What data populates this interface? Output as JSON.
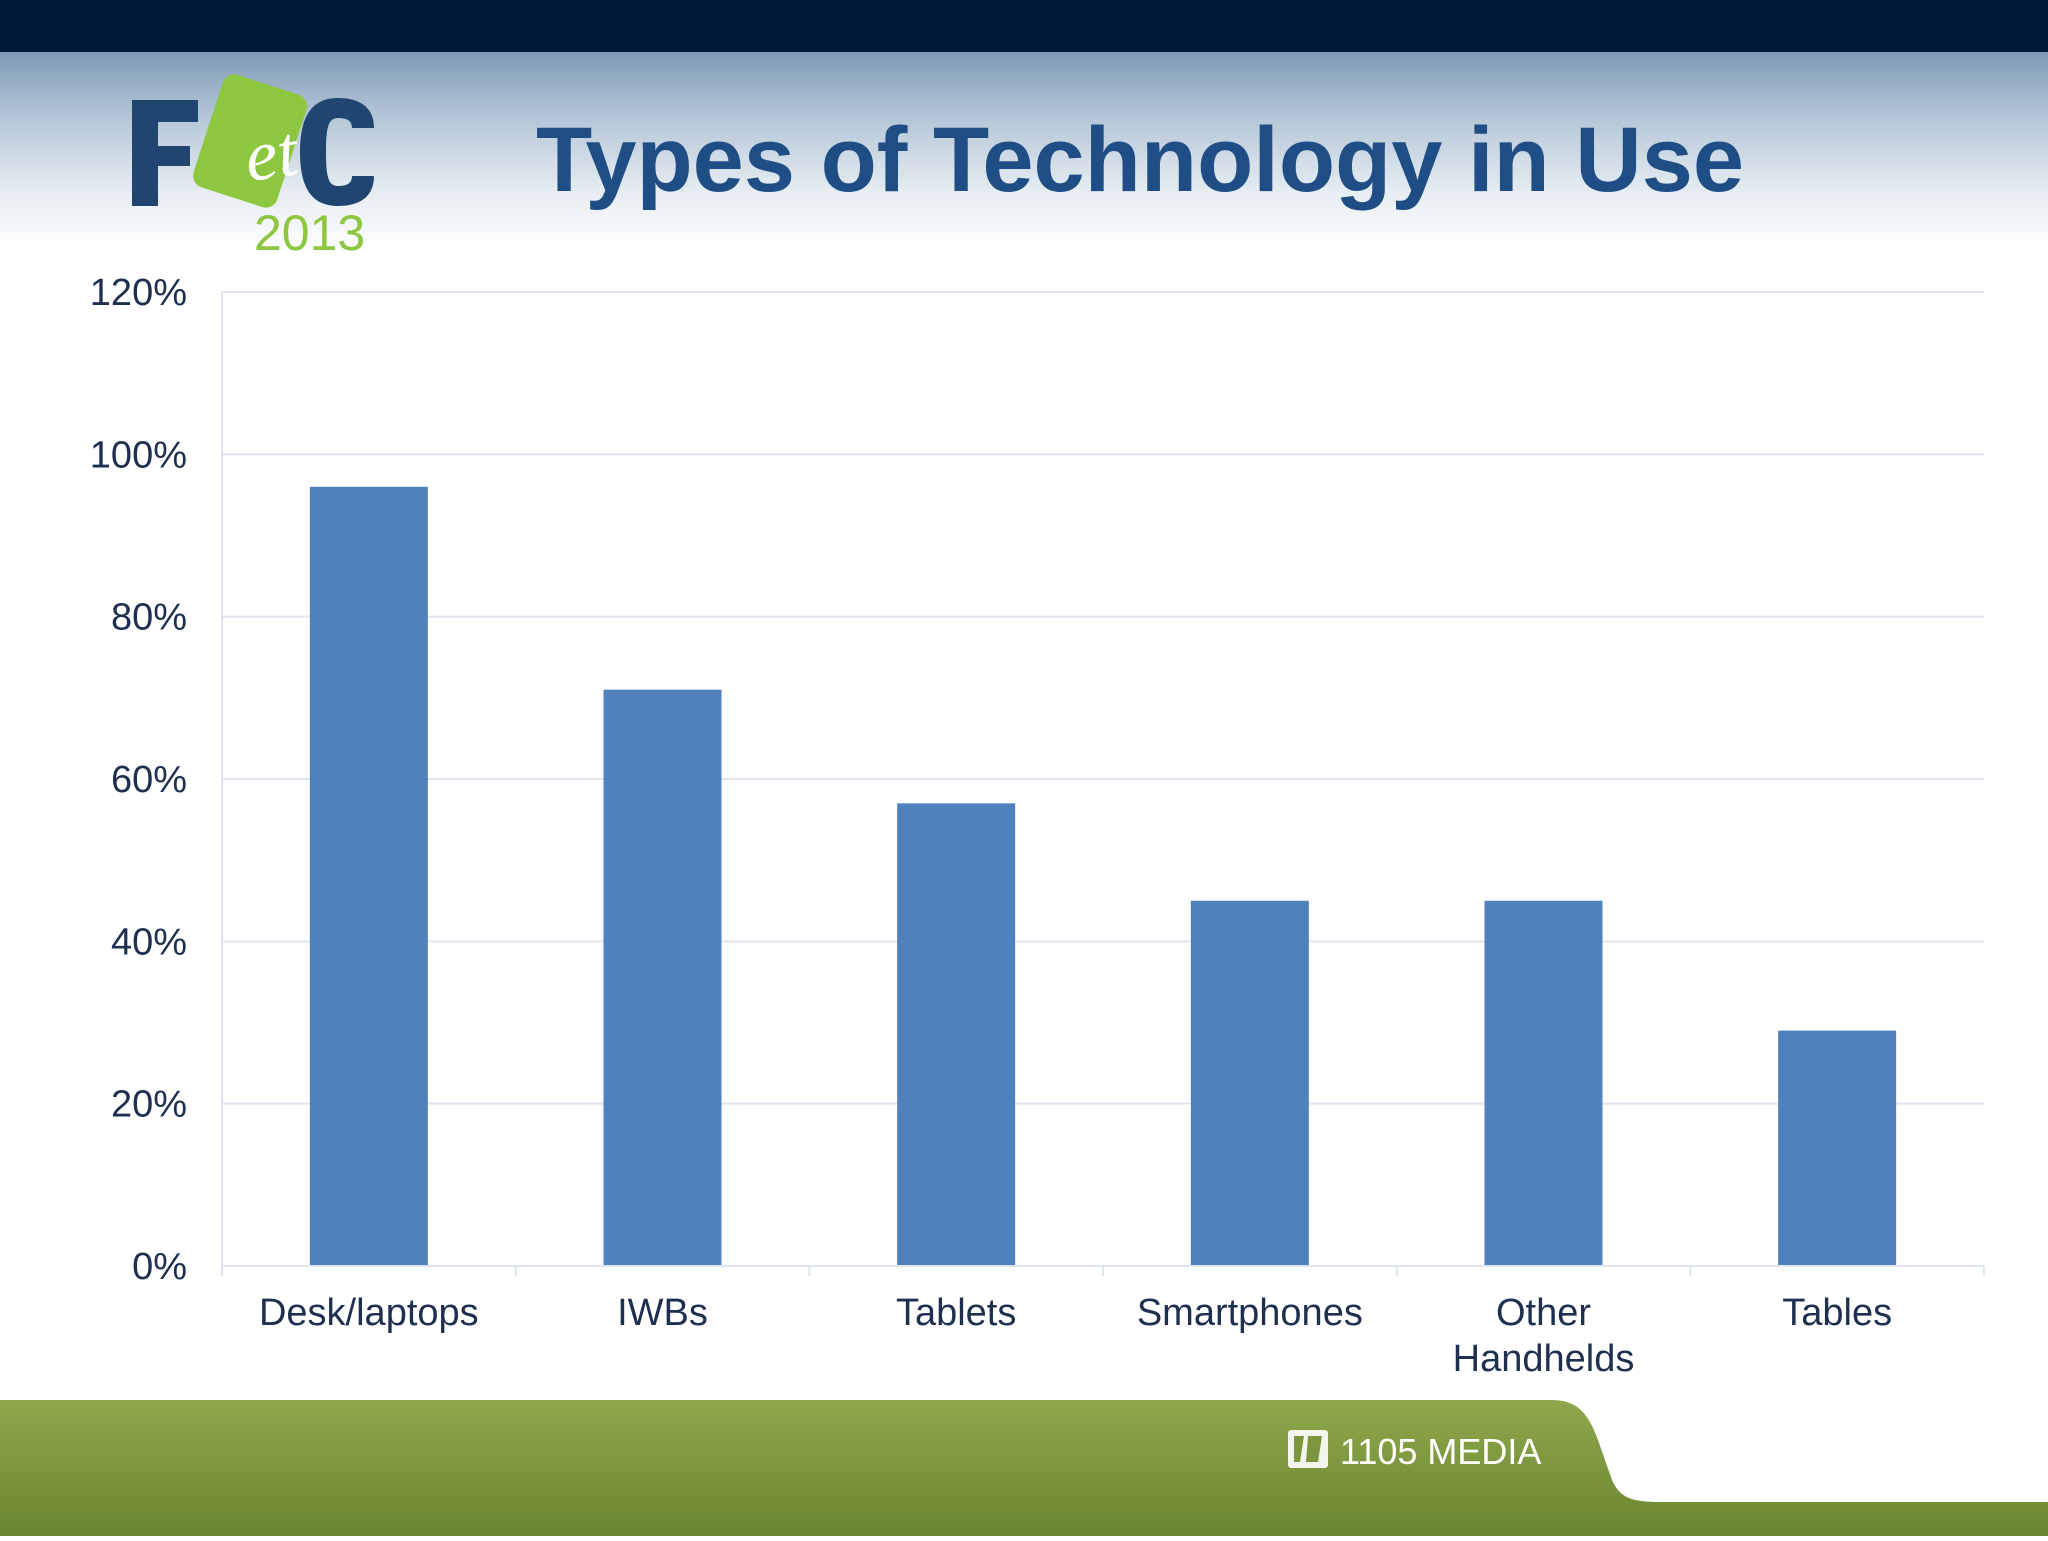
{
  "slide": {
    "title": "Types of Technology in Use",
    "logo": {
      "text": "FetC",
      "year": "2013"
    },
    "publisher": "1105 MEDIA"
  },
  "colors": {
    "top_bar": "#001a3a",
    "title": "#1f4d86",
    "bar": "#4f81bd",
    "axis_text": "#1f2f4f",
    "gridline": "#dfe5ee",
    "logo_navy": "#1f4570",
    "logo_green": "#8dc63f",
    "footer_green": "#7c963e"
  },
  "chart_data": {
    "type": "bar",
    "categories": [
      "Desk/laptops",
      "IWBs",
      "Tablets",
      "Smartphones",
      "Other Handhelds",
      "Tables"
    ],
    "category_lines": [
      [
        "Desk/laptops"
      ],
      [
        "IWBs"
      ],
      [
        "Tablets"
      ],
      [
        "Smartphones"
      ],
      [
        "Other",
        "Handhelds"
      ],
      [
        "Tables"
      ]
    ],
    "values": [
      96,
      71,
      57,
      45,
      45,
      29
    ],
    "ylim": [
      0,
      120
    ],
    "yticks": [
      0,
      20,
      40,
      60,
      80,
      100,
      120
    ],
    "ytick_labels": [
      "0%",
      "20%",
      "40%",
      "60%",
      "80%",
      "100%",
      "120%"
    ],
    "grid": true,
    "legend": "none",
    "xlabel": "",
    "ylabel": ""
  }
}
